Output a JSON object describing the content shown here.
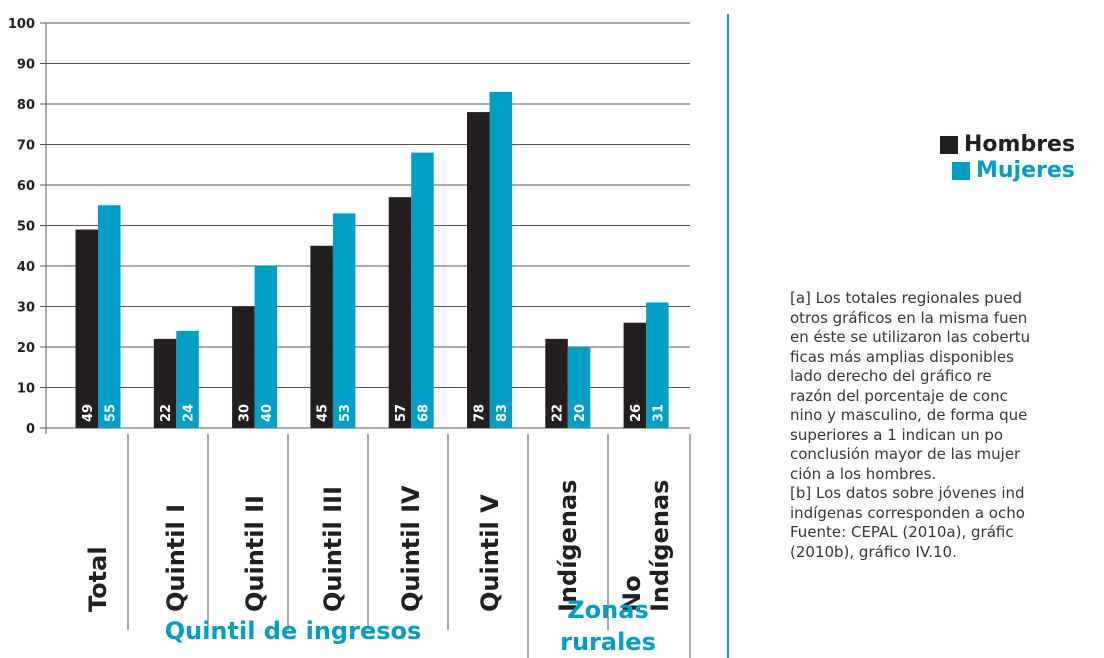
{
  "chart_data": {
    "type": "bar",
    "categories": [
      "Total",
      "Quintil I",
      "Quintil II",
      "Quintil III",
      "Quintil IV",
      "Quintil V",
      "Indígenas",
      "No Indígenas"
    ],
    "series": [
      {
        "name": "Hombres",
        "color": "#231f20",
        "values": [
          49,
          22,
          30,
          45,
          57,
          78,
          22,
          26
        ]
      },
      {
        "name": "Mujeres",
        "color": "#00a0c6",
        "values": [
          55,
          24,
          40,
          53,
          68,
          83,
          20,
          31
        ]
      }
    ],
    "ylim": [
      0,
      100
    ],
    "yticks": [
      0,
      10,
      20,
      30,
      40,
      50,
      60,
      70,
      80,
      90,
      100
    ],
    "grid": true,
    "groups": [
      "Quintil de ingresos",
      "Zonas rurales"
    ]
  },
  "notes": [
    "[a] Los totales regionales pued",
    "otros gráficos en la misma fuen",
    "en éste se utilizaron las cobertu",
    "ficas más amplias disponibles",
    "lado derecho del gráfico re",
    "razón del porcentaje de conc",
    "nino y masculino, de forma que",
    "superiores a 1 indican un po",
    "conclusión mayor de las mujer",
    "ción a los hombres.",
    "[b] Los datos sobre jóvenes ind",
    "indígenas corresponden a ocho",
    "Fuente: CEPAL (2010a), gráfic",
    "(2010b), gráfico IV.10."
  ]
}
